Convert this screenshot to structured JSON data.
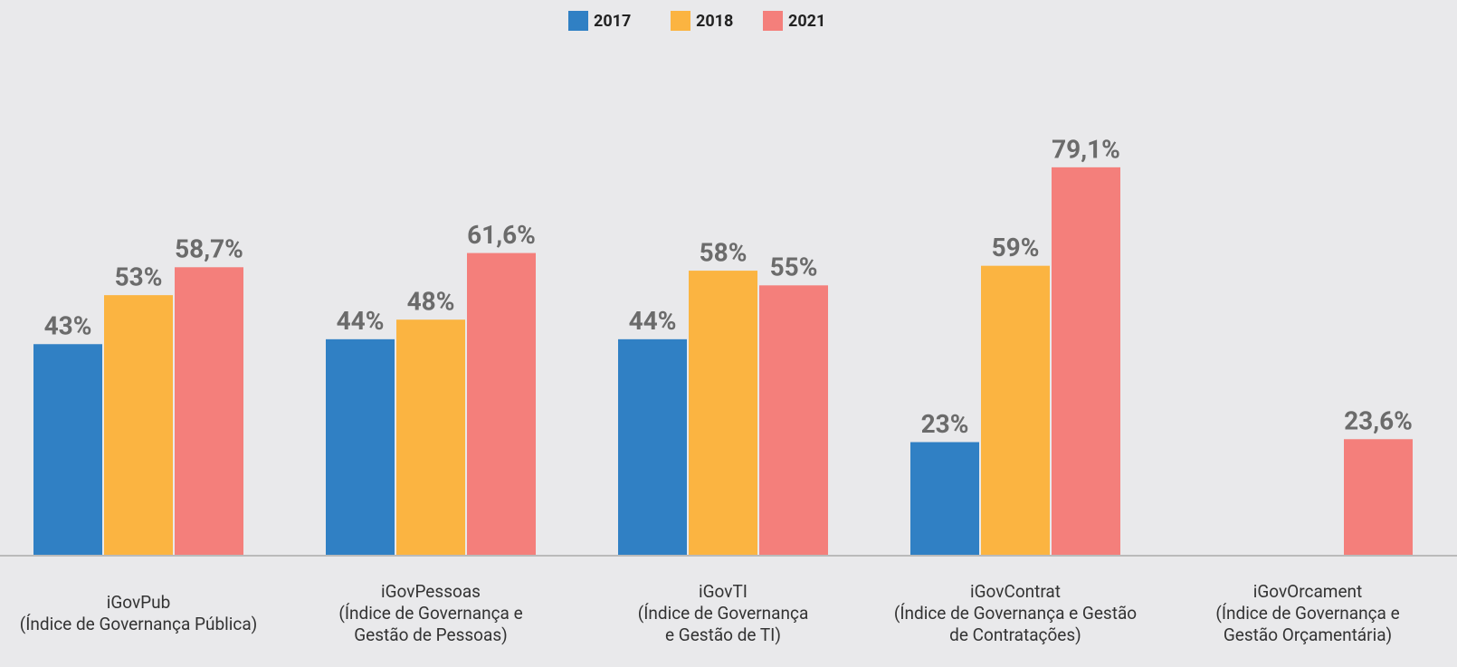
{
  "chart_data": {
    "type": "bar",
    "categories": [
      "iGovPub\n(Índice de Governança Pública)",
      "iGovPessoas\n(Índice de Governança e\nGestão de Pessoas)",
      "iGovTI\n(Índice de Governança\ne Gestão de TI)",
      "iGovContrat\n(Índice de Governança e Gestão\nde Contratações)",
      "iGovOrcament\n(Índice de Governança e\nGestão Orçamentária)"
    ],
    "series": [
      {
        "name": "2017",
        "color": "#3080c4",
        "values": [
          43,
          44,
          44,
          23,
          null
        ],
        "value_labels": [
          "43%",
          "44%",
          "44%",
          "23%",
          null
        ]
      },
      {
        "name": "2018",
        "color": "#fbb441",
        "values": [
          53,
          48,
          58,
          59,
          null
        ],
        "value_labels": [
          "53%",
          "48%",
          "58%",
          "59%",
          null
        ]
      },
      {
        "name": "2021",
        "color": "#f47f7b",
        "values": [
          58.7,
          61.6,
          55,
          79.1,
          23.6
        ],
        "value_labels": [
          "58,7%",
          "61,6%",
          "55%",
          "79,1%",
          "23,6%"
        ]
      }
    ],
    "ylim": [
      0,
      80
    ],
    "legend": "top"
  }
}
